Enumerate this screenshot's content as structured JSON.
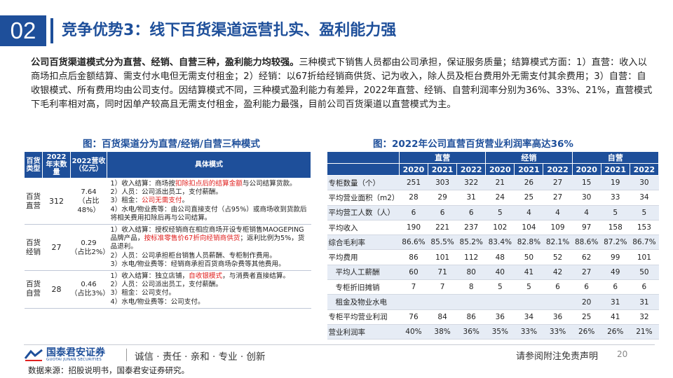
{
  "header": {
    "section_number": "02",
    "title": "竞争优势3：线下百货渠道运营扎实、盈利能力强"
  },
  "intro": {
    "lead": "公司百货渠道模式分为直营、经销、自营三种，盈利能力均较强。",
    "body": "三种模式下销售人员都由公司承担，保证服务质量；结算模式方面：1）直营：收入以商场扣点后金额结算、需支付水电但无需支付租金；2）经销：以67折给经销商供货、记为收入，除人员及柜台费用外无需支付其余费用；3）自营：自收银模式、所有费用均由公司支付。因结算模式不同，三种模式盈利能力有差异，2022年直营、经销、自营利润率分别为36%、33%、21%，直营模式下毛利率相对高，同时因单产较高且无需支付租金，盈利能力最强，目前公司百货渠道以直营模式为主。"
  },
  "left_table": {
    "caption": "图：百货渠道分为直营/经销/自营三种模式",
    "headers": [
      "百货类型",
      "2022年末数量",
      "2022营收（亿元）",
      "具体模式"
    ],
    "rows": [
      {
        "type": "百货直营",
        "count": "312",
        "revenue": "7.64",
        "share": "（占比48%）",
        "lines": [
          [
            "1）收入结算：商场按",
            "扣除扣点后的结算金额",
            "与公司结算货款。"
          ],
          [
            "2）人员：公司派出员工，支付薪酬。"
          ],
          [
            "3）租金：",
            "公司无需支付",
            "。"
          ],
          [
            "4）水电/物业费等：由公司直接支付（占95%）或商场收到货款后将相关费用扣除后再与公司结算。"
          ]
        ]
      },
      {
        "type": "百货经销",
        "count": "27",
        "revenue": "0.29",
        "share": "（占比2%）",
        "lines": [
          [
            "1）收入结算：授权经销商在相应商场开设专柜销售MAOGEPING品牌产品，",
            "按标准零售价67折向经销商供货",
            "；返利比例为5%，货品退利。"
          ],
          [
            "2）人员：公司承担柜台销售人员薪酬、专柜制作费用。"
          ],
          [
            "3）水电/物业费等：经销商承担百货商场杂费等其他费用。"
          ]
        ]
      },
      {
        "type": "百货自营",
        "count": "28",
        "revenue": "0.46",
        "share": "（占比3%）",
        "lines": [
          [
            "1）收入结算：独立店铺，",
            "自收银模式",
            "，与消费者直接结算。"
          ],
          [
            "2）人员：公司派出员工，支付薪酬。"
          ],
          [
            "3）租金：公司支付。"
          ],
          [
            "4）水电/物业费等：公司支付。"
          ]
        ]
      }
    ]
  },
  "right_table": {
    "caption": "图：2022年公司直营百货营业利润率高达36%",
    "groups": [
      "直营",
      "经销",
      "自营"
    ],
    "years": [
      "2020",
      "2021",
      "2022",
      "2020",
      "2021",
      "2022",
      "2020",
      "2021",
      "2022"
    ],
    "rows": [
      {
        "label": "专柜数量（个）",
        "sub": false,
        "values": [
          "251",
          "303",
          "322",
          "21",
          "26",
          "27",
          "15",
          "19",
          "30"
        ]
      },
      {
        "label": "平均营业面积（m2）",
        "sub": false,
        "values": [
          "28",
          "29",
          "31",
          "24",
          "25",
          "27",
          "30",
          "33",
          "34"
        ]
      },
      {
        "label": "平均营工人数（人）",
        "sub": false,
        "values": [
          "6",
          "6",
          "6",
          "5",
          "4",
          "4",
          "4",
          "5",
          "5"
        ]
      },
      {
        "label": "平均收入",
        "sub": false,
        "values": [
          "190",
          "221",
          "237",
          "102",
          "104",
          "109",
          "97",
          "158",
          "153"
        ]
      },
      {
        "label": "综合毛利率",
        "sub": false,
        "values": [
          "86.6%",
          "85.5%",
          "85.2%",
          "83.4%",
          "82.8%",
          "82.1%",
          "88.6%",
          "87.2%",
          "86.7%"
        ]
      },
      {
        "label": "平均费用",
        "sub": false,
        "values": [
          "86",
          "101",
          "112",
          "48",
          "50",
          "52",
          "62",
          "99",
          "101"
        ]
      },
      {
        "label": "平均人工薪酬",
        "sub": true,
        "values": [
          "60",
          "71",
          "80",
          "40",
          "41",
          "42",
          "27",
          "49",
          "50"
        ]
      },
      {
        "label": "专柜折旧摊销",
        "sub": true,
        "values": [
          "7",
          "7",
          "8",
          "5",
          "5",
          "6",
          "6",
          "6",
          "6"
        ]
      },
      {
        "label": "租金及物业水电",
        "sub": true,
        "values": [
          "",
          "",
          "",
          "",
          "",
          "",
          "20",
          "31",
          "31"
        ]
      },
      {
        "label": "专柜平均营业利润",
        "sub": false,
        "values": [
          "76",
          "84",
          "86",
          "36",
          "34",
          "36",
          "25",
          "41",
          "32"
        ]
      },
      {
        "label": "营业利润率",
        "sub": false,
        "values": [
          "40%",
          "38%",
          "36%",
          "35%",
          "33%",
          "33%",
          "26%",
          "26%",
          "21%"
        ]
      }
    ]
  },
  "footer": {
    "logo_text": "国泰君安证券",
    "logo_sub": "GUOTAI JUNAN SECURITIES",
    "slogan": "诚信 · 责任 · 亲和 · 专业 · 创新",
    "disclaimer": "请参阅附注免责声明",
    "page": "20",
    "source": "数据来源：招股说明书，国泰君安证券研究。"
  },
  "colors": {
    "brand": "#1e4f9a",
    "highlight": "#e0201f",
    "row_alt": "#e6ecf5"
  }
}
